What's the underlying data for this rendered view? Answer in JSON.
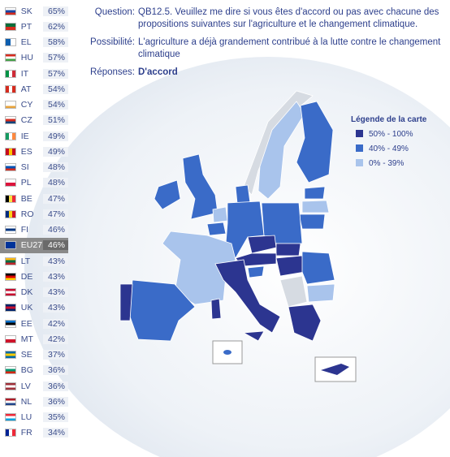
{
  "rows": [
    {
      "code": "SK",
      "value": "65%"
    },
    {
      "code": "PT",
      "value": "62%"
    },
    {
      "code": "EL",
      "value": "58%"
    },
    {
      "code": "HU",
      "value": "57%"
    },
    {
      "code": "IT",
      "value": "57%"
    },
    {
      "code": "AT",
      "value": "54%"
    },
    {
      "code": "CY",
      "value": "54%"
    },
    {
      "code": "CZ",
      "value": "51%"
    },
    {
      "code": "IE",
      "value": "49%"
    },
    {
      "code": "ES",
      "value": "49%"
    },
    {
      "code": "SI",
      "value": "48%"
    },
    {
      "code": "PL",
      "value": "48%"
    },
    {
      "code": "BE",
      "value": "47%"
    },
    {
      "code": "RO",
      "value": "47%"
    },
    {
      "code": "FI",
      "value": "46%"
    },
    {
      "code": "EU27",
      "value": "46%"
    },
    {
      "code": "LT",
      "value": "43%"
    },
    {
      "code": "DE",
      "value": "43%"
    },
    {
      "code": "DK",
      "value": "43%"
    },
    {
      "code": "UK",
      "value": "43%"
    },
    {
      "code": "EE",
      "value": "42%"
    },
    {
      "code": "MT",
      "value": "42%"
    },
    {
      "code": "SE",
      "value": "37%"
    },
    {
      "code": "BG",
      "value": "36%"
    },
    {
      "code": "LV",
      "value": "36%"
    },
    {
      "code": "NL",
      "value": "36%"
    },
    {
      "code": "LU",
      "value": "35%"
    },
    {
      "code": "FR",
      "value": "34%"
    }
  ],
  "question": {
    "label": "Question:",
    "text": "QB12.5. Veuillez me dire si vous êtes d'accord ou pas avec chacune des propositions suivantes sur l'agriculture et le changement climatique."
  },
  "possibility": {
    "label": "Possibilité:",
    "text": "L'agriculture a déjà grandement contribué à la lutte contre le changement climatique"
  },
  "answer": {
    "label": "Réponses:",
    "text": "D'accord"
  },
  "legend": {
    "title": "Légende de la carte",
    "items": [
      "50% - 100%",
      "40% - 49%",
      "0% - 39%"
    ]
  }
}
